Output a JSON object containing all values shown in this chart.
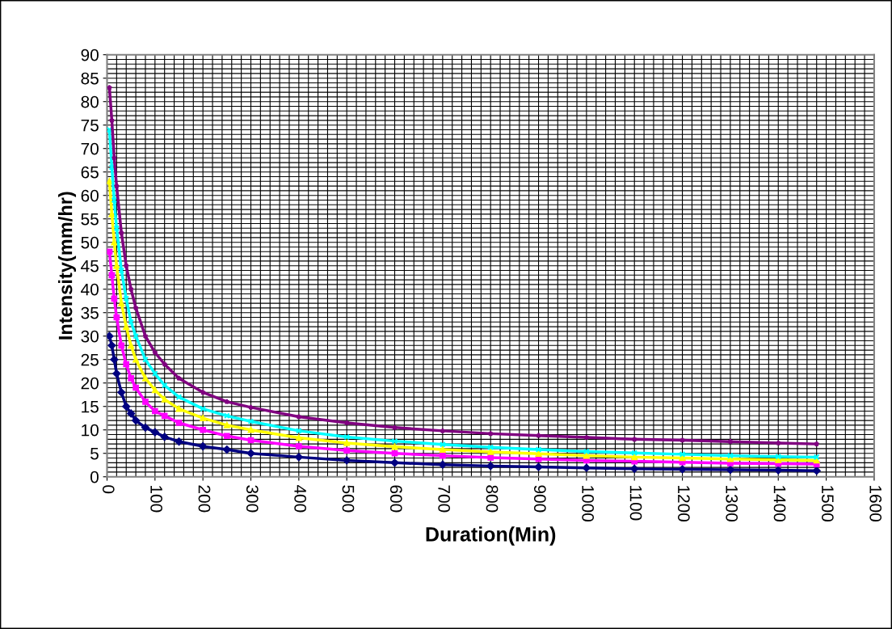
{
  "chart_data": {
    "type": "line",
    "xlabel": "Duration(Min)",
    "ylabel": "Intensity(mm/hr)",
    "x": [
      5,
      10,
      15,
      20,
      30,
      40,
      50,
      60,
      80,
      100,
      120,
      150,
      200,
      250,
      300,
      400,
      500,
      600,
      700,
      800,
      900,
      1000,
      1100,
      1200,
      1300,
      1400,
      1480
    ],
    "series": [
      {
        "color": "#000080",
        "marker": "diamond",
        "values": [
          30,
          28,
          25,
          22,
          18,
          15,
          13.5,
          12,
          10.5,
          9.5,
          8.5,
          7.5,
          6.5,
          5.8,
          5,
          4.2,
          3.5,
          3,
          2.6,
          2.3,
          2.1,
          1.9,
          1.7,
          1.6,
          1.5,
          1.4,
          1.3
        ]
      },
      {
        "color": "#ff00ff",
        "marker": "square",
        "values": [
          48,
          43,
          38,
          34,
          28,
          24,
          21,
          19,
          16,
          14,
          13,
          11.5,
          10,
          8.7,
          7.8,
          6.5,
          5.6,
          5,
          4.5,
          4.1,
          3.8,
          3.5,
          3.3,
          3.1,
          2.9,
          2.8,
          2.7
        ]
      },
      {
        "color": "#ffff00",
        "marker": "triangle",
        "values": [
          63,
          56,
          50,
          45,
          37,
          32,
          28,
          25,
          21,
          18.5,
          16.5,
          14.5,
          12.5,
          11,
          10,
          8.3,
          7.2,
          6.4,
          5.8,
          5.3,
          4.9,
          4.5,
          4.2,
          4,
          3.8,
          3.6,
          3.5
        ]
      },
      {
        "color": "#00ffff",
        "marker": "cross",
        "values": [
          74,
          66,
          59,
          53,
          44,
          38,
          33,
          30,
          25,
          22,
          19.5,
          17,
          14.5,
          13,
          11.8,
          9.8,
          8.5,
          7.6,
          6.9,
          6.3,
          5.8,
          5.4,
          5.1,
          4.8,
          4.5,
          4.3,
          4.2
        ]
      },
      {
        "color": "#800080",
        "marker": "star",
        "values": [
          83,
          76,
          68,
          62,
          52,
          45,
          40,
          36,
          30,
          26.5,
          24,
          21,
          18,
          16,
          14.8,
          12.8,
          11.5,
          10.5,
          9.8,
          9.2,
          8.8,
          8.4,
          8,
          7.8,
          7.5,
          7.2,
          7
        ]
      }
    ],
    "xlim": [
      0,
      1600
    ],
    "xticks": [
      0,
      100,
      200,
      300,
      400,
      500,
      600,
      700,
      800,
      900,
      1000,
      1100,
      1200,
      1300,
      1400,
      1500,
      1600
    ],
    "ylim": [
      0,
      90
    ],
    "yticks": [
      0,
      5,
      10,
      15,
      20,
      25,
      30,
      35,
      40,
      45,
      50,
      55,
      60,
      65,
      70,
      75,
      80,
      85,
      90
    ],
    "grid": true,
    "legend": false
  }
}
